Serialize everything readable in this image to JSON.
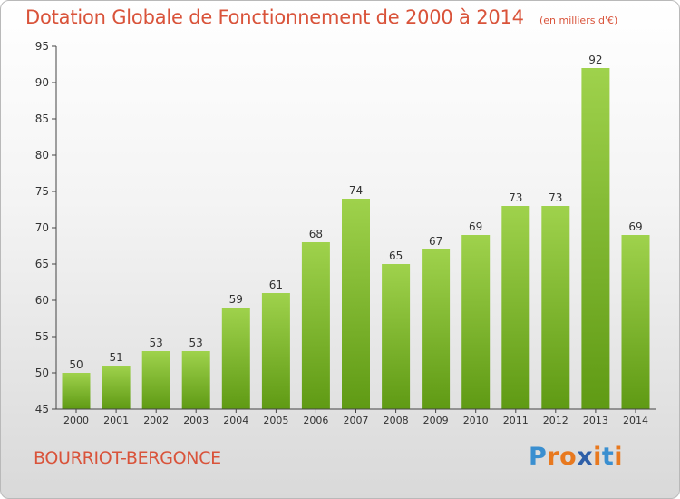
{
  "chart_data": {
    "type": "bar",
    "title": "Dotation Globale de Fonctionnement de 2000 à 2014",
    "unit_note": "(en milliers d'€)",
    "categories": [
      "2000",
      "2001",
      "2002",
      "2003",
      "2004",
      "2005",
      "2006",
      "2007",
      "2008",
      "2009",
      "2010",
      "2011",
      "2012",
      "2013",
      "2014"
    ],
    "values": [
      50,
      51,
      53,
      53,
      59,
      61,
      68,
      74,
      65,
      67,
      69,
      73,
      73,
      92,
      69
    ],
    "ylim": [
      45,
      95
    ],
    "yticks": [
      45,
      50,
      55,
      60,
      65,
      70,
      75,
      80,
      85,
      90,
      95
    ],
    "grid": false,
    "bar_color_top": "#9fd24c",
    "bar_color_bottom": "#5f9a14"
  },
  "footer": {
    "commune": "BOURRIOT-BERGONCE",
    "brand_letters": [
      "P",
      "r",
      "o",
      "x",
      "i",
      "t",
      "i"
    ],
    "brand_colors": [
      "#3a8fd0",
      "#e8791f",
      "#e8791f",
      "#2e5fa8",
      "#e8791f",
      "#3a8fd0",
      "#e8791f"
    ]
  },
  "colors": {
    "title": "#d9533a",
    "axis": "#444444",
    "label": "#333333"
  }
}
